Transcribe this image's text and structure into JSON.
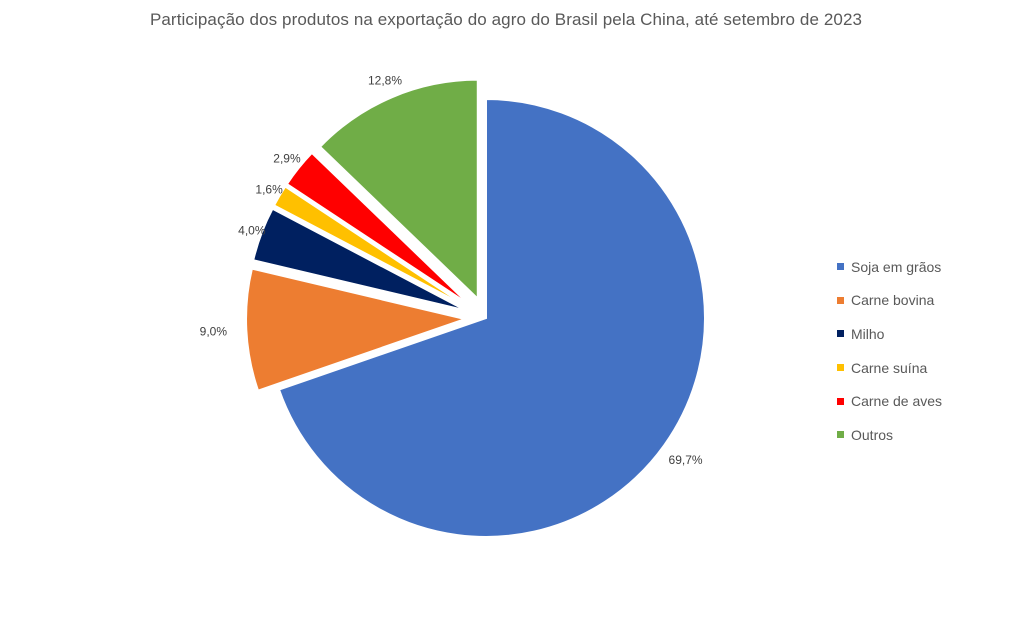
{
  "chart_data": {
    "type": "pie",
    "title": "Participação dos produtos na exportação do agro do Brasil pela China, até setembro de 2023",
    "slices": [
      {
        "name": "Soja em grãos",
        "value": 69.7,
        "label": "69,7%",
        "color": "#4472C4"
      },
      {
        "name": "Carne bovina",
        "value": 9.0,
        "label": "9,0%",
        "color": "#ED7D31"
      },
      {
        "name": "Milho",
        "value": 4.0,
        "label": "4,0%",
        "color": "#002060"
      },
      {
        "name": "Carne suína",
        "value": 1.6,
        "label": "1,6%",
        "color": "#FFC000"
      },
      {
        "name": "Carne de aves",
        "value": 2.9,
        "label": "2,9%",
        "color": "#FF0000"
      },
      {
        "name": "Outros",
        "value": 12.8,
        "label": "12,8%",
        "color": "#70AD47"
      }
    ],
    "legend_position": "right",
    "exploded": true
  }
}
